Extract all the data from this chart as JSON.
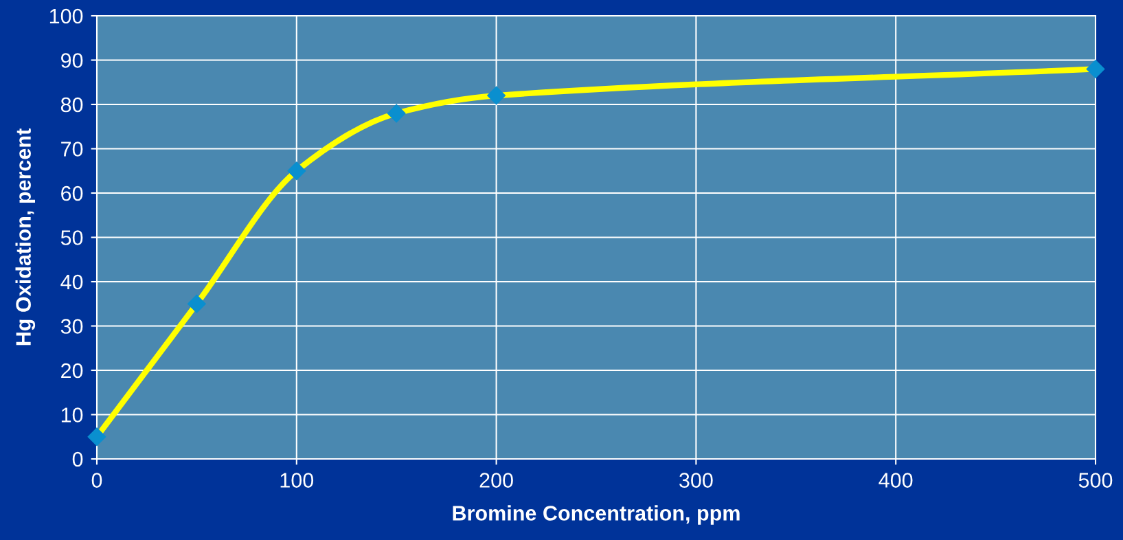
{
  "chart_data": {
    "type": "line",
    "xlabel": "Bromine Concentration, ppm",
    "ylabel": "Hg Oxidation, percent",
    "x": [
      0,
      50,
      100,
      150,
      200,
      500
    ],
    "series": [
      {
        "color": "#ffff00",
        "values": [
          5,
          35,
          65,
          78,
          82,
          88
        ]
      }
    ],
    "xlim": [
      0,
      500
    ],
    "xticks": [
      0,
      100,
      200,
      300,
      400,
      500
    ],
    "ylim": [
      0,
      100
    ],
    "yticks": [
      0,
      10,
      20,
      30,
      40,
      50,
      60,
      70,
      80,
      90,
      100
    ],
    "grid": true,
    "marker": "diamond",
    "line_style": "solid"
  }
}
